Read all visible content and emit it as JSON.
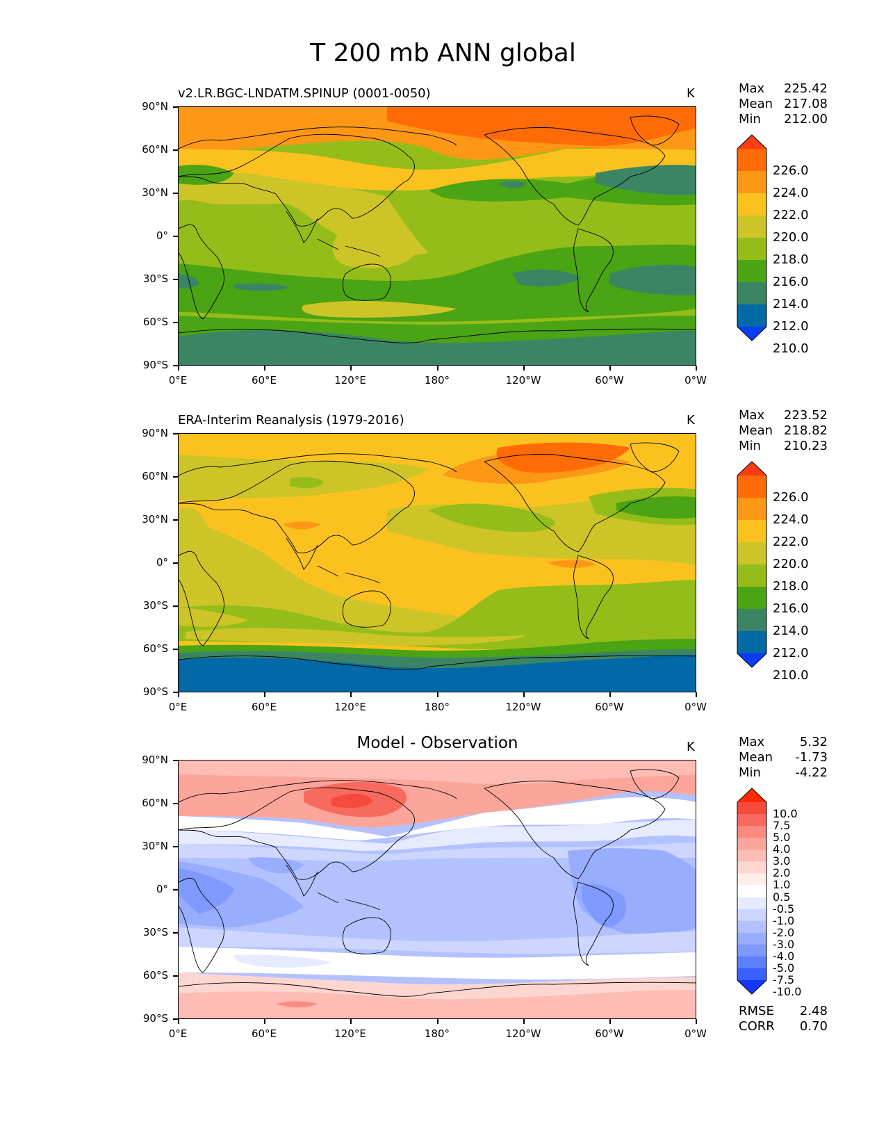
{
  "title": "T 200 mb ANN global",
  "lat_ticks": [
    "90°N",
    "60°N",
    "30°N",
    "0°",
    "30°S",
    "60°S",
    "90°S"
  ],
  "lon_ticks": [
    "0°E",
    "60°E",
    "120°E",
    "180°",
    "120°W",
    "60°W",
    "0°W"
  ],
  "panels": [
    {
      "title": "v2.LR.BGC-LNDATM.SPINUP (0001-0050)",
      "units": "K",
      "stats": {
        "max_label": "Max",
        "max": "225.42",
        "mean_label": "Mean",
        "mean": "217.08",
        "min_label": "Min",
        "min": "212.00"
      },
      "colorbar": {
        "labels": [
          "226.0",
          "224.0",
          "222.0",
          "220.0",
          "218.0",
          "216.0",
          "214.0",
          "212.0",
          "210.0"
        ],
        "colors": [
          "#ff3d13",
          "#ff6b06",
          "#fd9716",
          "#fbc21f",
          "#cdc527",
          "#95bd1a",
          "#4aa413",
          "#3b8565",
          "#0169a6",
          "#0a3cf8"
        ]
      }
    },
    {
      "title": "ERA-Interim Reanalysis (1979-2016)",
      "units": "K",
      "stats": {
        "max_label": "Max",
        "max": "223.52",
        "mean_label": "Mean",
        "mean": "218.82",
        "min_label": "Min",
        "min": "210.23"
      },
      "colorbar": {
        "labels": [
          "226.0",
          "224.0",
          "222.0",
          "220.0",
          "218.0",
          "216.0",
          "214.0",
          "212.0",
          "210.0"
        ],
        "colors": [
          "#ff3d13",
          "#ff6b06",
          "#fd9716",
          "#fbc21f",
          "#cdc527",
          "#95bd1a",
          "#4aa413",
          "#3b8565",
          "#0169a6",
          "#0a3cf8"
        ]
      }
    },
    {
      "title": "Model - Observation",
      "units": "K",
      "stats": {
        "max_label": "Max",
        "max": "5.32",
        "mean_label": "Mean",
        "mean": "-1.73",
        "min_label": "Min",
        "min": "-4.22"
      },
      "extra": {
        "rmse_label": "RMSE",
        "rmse": "2.48",
        "corr_label": "CORR",
        "corr": "0.70"
      },
      "colorbar": {
        "labels": [
          "10.0",
          "7.5",
          "5.0",
          "4.0",
          "3.0",
          "2.0",
          "1.0",
          "0.5",
          "-0.5",
          "-1.0",
          "-2.0",
          "-3.0",
          "-4.0",
          "-5.0",
          "-7.5",
          "-10.0"
        ],
        "colors": [
          "#ff2a00",
          "#f54a3c",
          "#f86a5e",
          "#fb8a80",
          "#fca59b",
          "#fdbdb4",
          "#fed6d0",
          "#ffeeea",
          "#ffffff",
          "#e6ebff",
          "#ccd6ff",
          "#b3c2ff",
          "#99adff",
          "#7f99ff",
          "#5c7eff",
          "#3a5fff",
          "#1238ff"
        ]
      }
    }
  ]
}
